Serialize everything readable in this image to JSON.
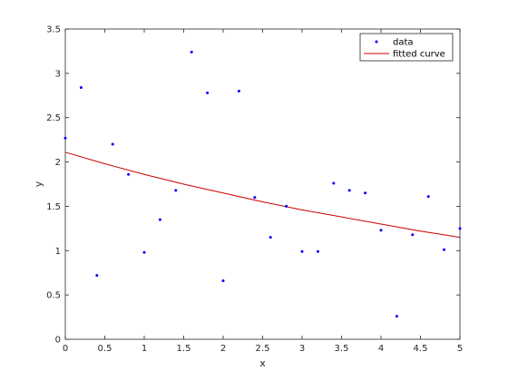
{
  "chart_data": {
    "type": "scatter",
    "xlabel": "x",
    "ylabel": "y",
    "xlim": [
      0,
      5
    ],
    "ylim": [
      0,
      3.5
    ],
    "xticks": [
      0,
      0.5,
      1,
      1.5,
      2,
      2.5,
      3,
      3.5,
      4,
      4.5,
      5
    ],
    "xtick_labels": [
      "0",
      "0.5",
      "1",
      "1.5",
      "2",
      "2.5",
      "3",
      "3.5",
      "4",
      "4.5",
      "5"
    ],
    "yticks": [
      0,
      0.5,
      1,
      1.5,
      2,
      2.5,
      3,
      3.5
    ],
    "ytick_labels": [
      "0",
      "0.5",
      "1",
      "1.5",
      "2",
      "2.5",
      "3",
      "3.5"
    ],
    "grid": false,
    "legend_position": "top-right",
    "series": [
      {
        "name": "data",
        "kind": "scatter",
        "color": "#0000ff",
        "x": [
          0,
          0.2,
          0.4,
          0.6,
          0.8,
          1.0,
          1.2,
          1.4,
          1.6,
          1.8,
          2.0,
          2.2,
          2.4,
          2.6,
          2.8,
          3.0,
          3.2,
          3.4,
          3.6,
          3.8,
          4.0,
          4.2,
          4.4,
          4.6,
          4.8,
          5.0
        ],
        "y": [
          2.27,
          2.84,
          0.72,
          2.2,
          1.86,
          0.98,
          1.35,
          1.68,
          3.24,
          2.78,
          0.66,
          2.8,
          1.6,
          1.15,
          1.5,
          0.99,
          0.99,
          1.76,
          1.68,
          1.65,
          1.23,
          0.26,
          1.18,
          1.61,
          1.01,
          1.25
        ]
      },
      {
        "name": "fitted curve",
        "kind": "line",
        "color": "#cc0000",
        "x": [
          0,
          0.5,
          1,
          1.5,
          2,
          2.5,
          3,
          3.5,
          4,
          4.5,
          5
        ],
        "y": [
          2.11,
          1.98,
          1.86,
          1.75,
          1.65,
          1.55,
          1.46,
          1.38,
          1.3,
          1.22,
          1.15
        ]
      }
    ]
  }
}
